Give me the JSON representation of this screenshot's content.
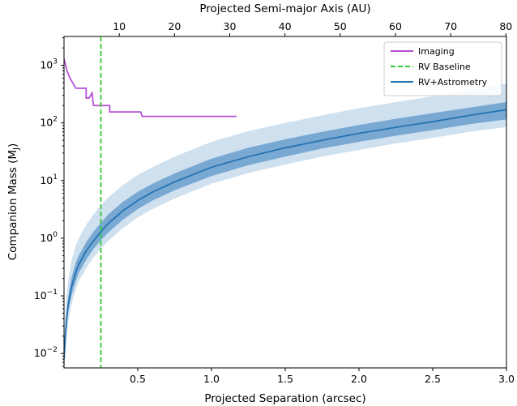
{
  "chart_data": {
    "type": "line",
    "xlabel": "Projected Separation (arcsec)",
    "ylabel": "Companion Mass (M",
    "ylabel_sub": "J",
    "ylabel_end": ")",
    "x2label": "Projected Semi-major Axis (AU)",
    "xlim": [
      0.0,
      3.0
    ],
    "ylim_log10": [
      -2.25,
      3.5
    ],
    "y_scale": "log",
    "grid": false,
    "legend_position": "top-right",
    "x_ticks": [
      0.5,
      1.0,
      1.5,
      2.0,
      2.5,
      3.0
    ],
    "x_tick_labels": [
      "0.5",
      "1.0",
      "1.5",
      "2.0",
      "2.5",
      "3.0"
    ],
    "x2_ticks_au": [
      10,
      20,
      30,
      40,
      50,
      60,
      70,
      80
    ],
    "x2_tick_labels": [
      "10",
      "20",
      "30",
      "40",
      "50",
      "60",
      "70",
      "80"
    ],
    "au_per_arcsec": 26.7,
    "y_ticks_exp": [
      -2,
      -1,
      0,
      1,
      2,
      3
    ],
    "y_tick_base": "10",
    "y_tick_exponents": [
      "−2",
      "−1",
      "0",
      "1",
      "2",
      "3"
    ],
    "series": [
      {
        "name": "Imaging",
        "kind": "step",
        "color": "#b44fd6",
        "x": [
          0.0,
          0.02,
          0.04,
          0.08,
          0.15,
          0.15,
          0.17,
          0.19,
          0.2,
          0.21,
          0.23,
          0.24,
          0.31,
          0.31,
          0.52,
          0.53,
          1.17
        ],
        "y": [
          1300,
          800,
          600,
          400,
          400,
          270,
          270,
          330,
          200,
          200,
          200,
          200,
          200,
          155,
          155,
          130,
          130
        ]
      },
      {
        "name": "RV Baseline",
        "kind": "vline",
        "color": "#2ecc2e",
        "x": 0.25
      },
      {
        "name": "RV+Astrometry",
        "kind": "band-line",
        "color": "#2473b4",
        "band_inner_color": "#79a8d2",
        "band_outer_color": "#cfe0ef",
        "x": [
          0.0,
          0.01,
          0.02,
          0.03,
          0.05,
          0.08,
          0.1,
          0.15,
          0.2,
          0.25,
          0.3,
          0.4,
          0.5,
          0.6,
          0.75,
          1.0,
          1.25,
          1.5,
          1.75,
          2.0,
          2.25,
          2.5,
          2.75,
          3.0
        ],
        "y": [
          0.008,
          0.022,
          0.045,
          0.075,
          0.14,
          0.26,
          0.35,
          0.6,
          0.9,
          1.3,
          1.8,
          3.0,
          4.5,
          6.3,
          9.5,
          17,
          26,
          37,
          50,
          66,
          84,
          105,
          135,
          170
        ],
        "inner_lower": [
          0.006,
          0.016,
          0.033,
          0.055,
          0.1,
          0.18,
          0.25,
          0.42,
          0.65,
          0.92,
          1.25,
          2.1,
          3.2,
          4.5,
          6.8,
          12,
          18.5,
          26,
          36,
          47,
          60,
          75,
          95,
          115
        ],
        "inner_upper": [
          0.011,
          0.03,
          0.06,
          0.1,
          0.2,
          0.38,
          0.5,
          0.85,
          1.3,
          1.85,
          2.6,
          4.3,
          6.4,
          8.8,
          13.3,
          24,
          37,
          52,
          70,
          92,
          118,
          148,
          185,
          230
        ],
        "outer_lower": [
          0.004,
          0.011,
          0.022,
          0.038,
          0.07,
          0.13,
          0.18,
          0.3,
          0.46,
          0.65,
          0.9,
          1.5,
          2.3,
          3.2,
          4.9,
          8.8,
          13.5,
          19,
          26,
          34,
          44,
          55,
          70,
          85
        ],
        "outer_upper": [
          0.02,
          0.06,
          0.12,
          0.2,
          0.4,
          0.75,
          1.0,
          1.7,
          2.6,
          3.7,
          5.1,
          8.4,
          12.5,
          17,
          26,
          47,
          72,
          100,
          135,
          180,
          230,
          290,
          370,
          480
        ]
      }
    ]
  }
}
